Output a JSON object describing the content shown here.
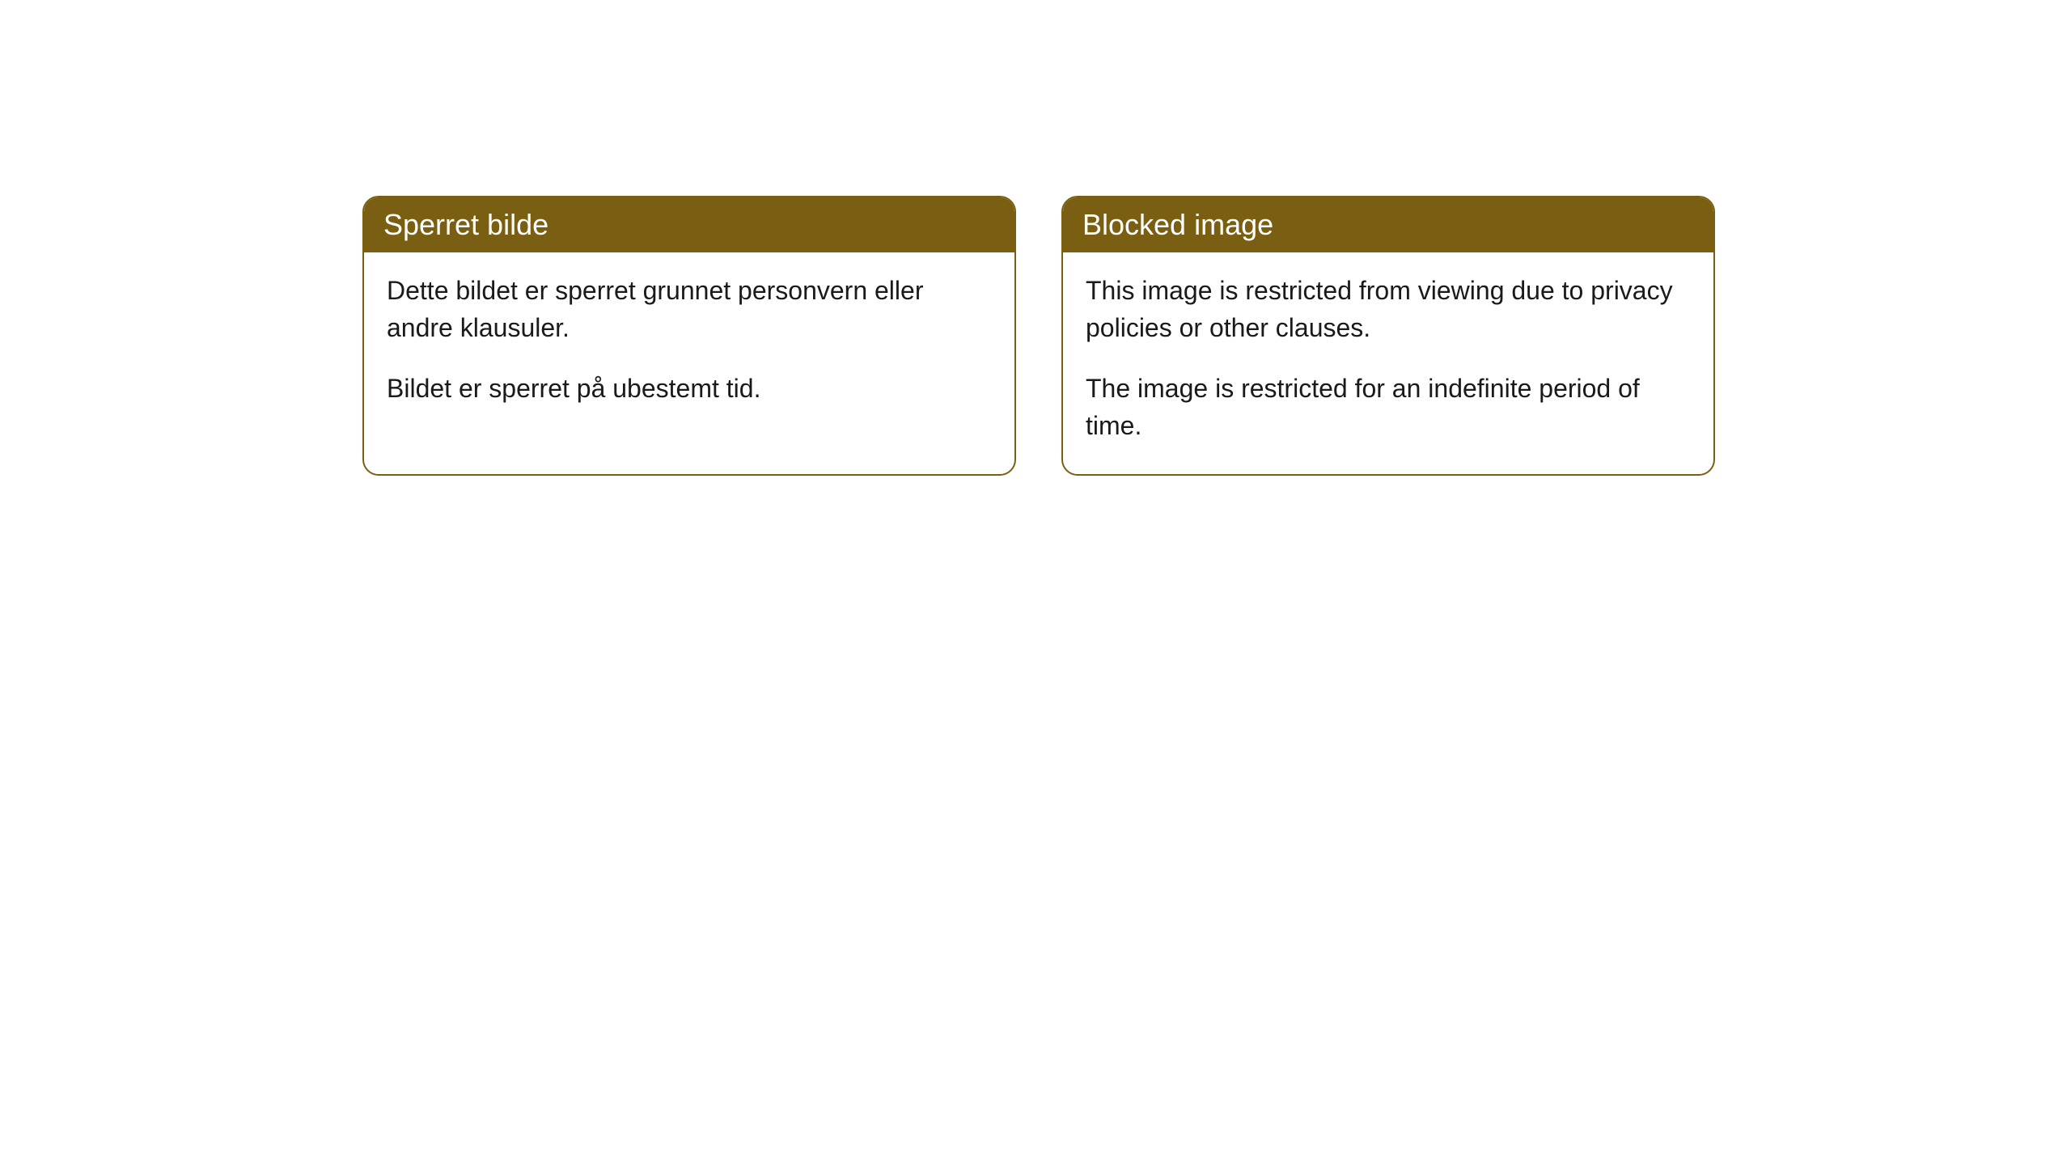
{
  "theme": {
    "header_bg": "#7a5f13",
    "header_text": "#ffffff",
    "body_bg": "#ffffff",
    "body_text": "#1a1a1a",
    "border_color": "#7a5f13",
    "border_radius": 20,
    "header_fontsize": 36,
    "body_fontsize": 32
  },
  "cards": [
    {
      "title": "Sperret bilde",
      "paragraphs": [
        "Dette bildet er sperret grunnet personvern eller andre klausuler.",
        "Bildet er sperret på ubestemt tid."
      ]
    },
    {
      "title": "Blocked image",
      "paragraphs": [
        "This image is restricted from viewing due to privacy policies or other clauses.",
        "The image is restricted for an indefinite period of time."
      ]
    }
  ]
}
